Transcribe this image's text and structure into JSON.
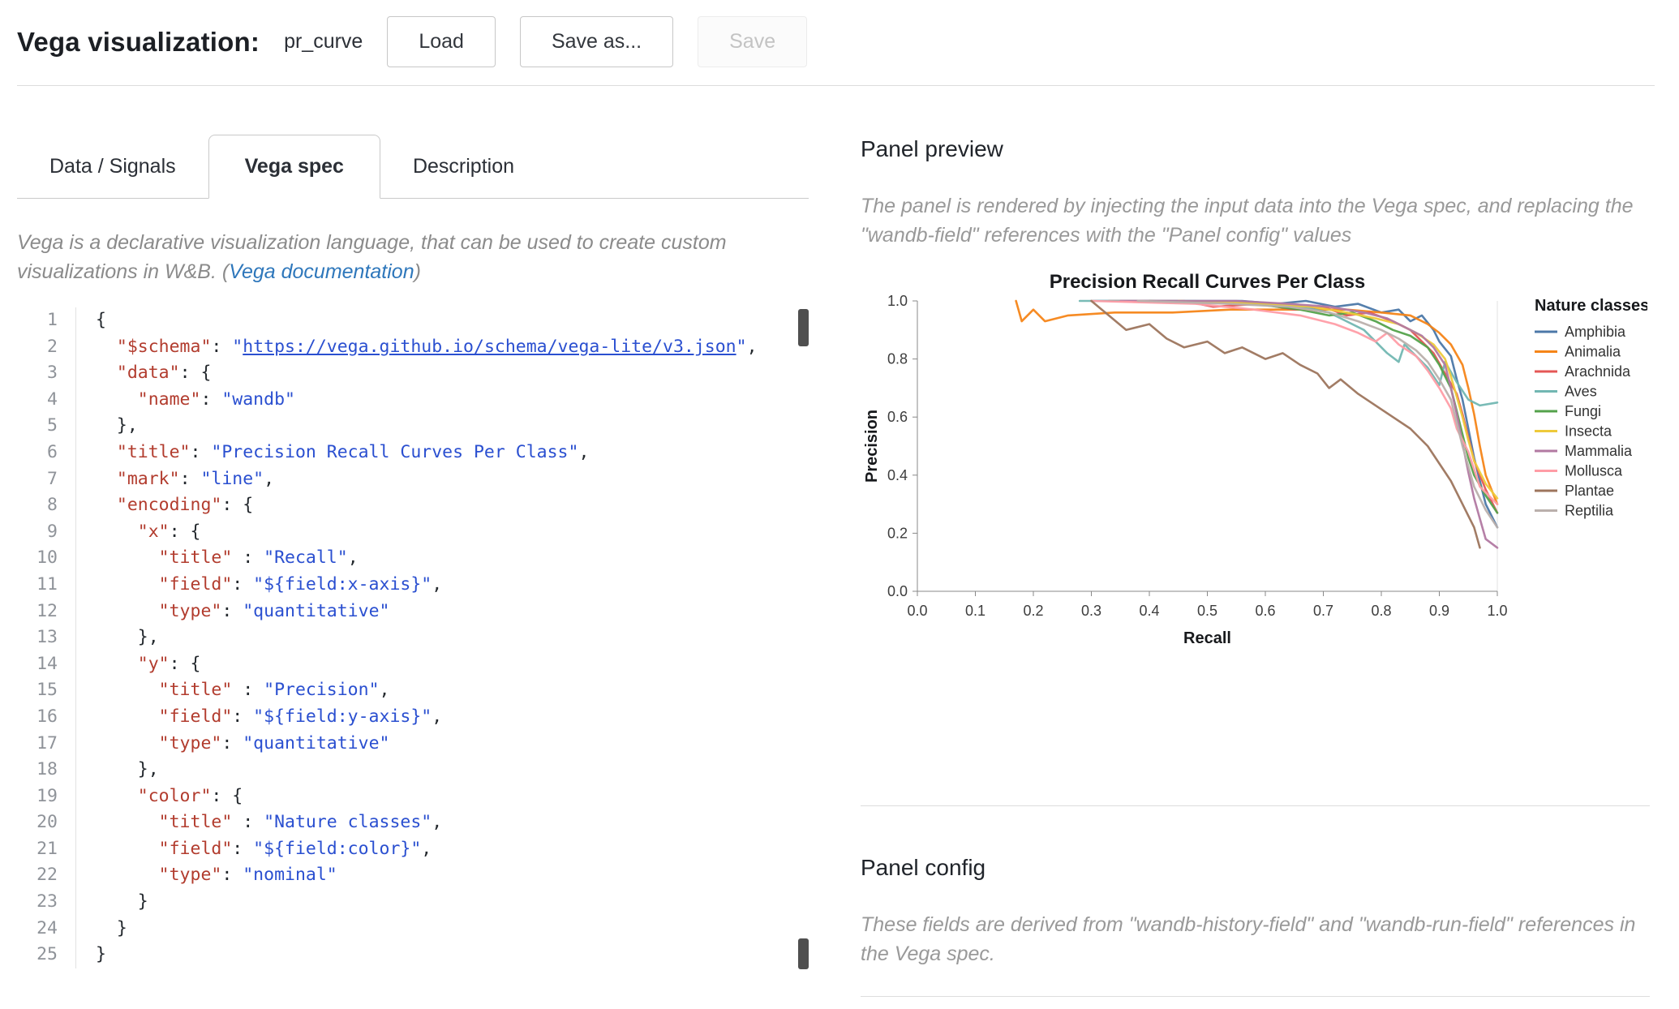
{
  "colors": {
    "link": "#2e77bb",
    "code-key": "#b23c2e",
    "code-str": "#2a4fd0"
  },
  "header": {
    "title": "Vega visualization:",
    "name_value": "pr_curve",
    "load_label": "Load",
    "save_as_label": "Save as...",
    "save_label": "Save"
  },
  "tabs": [
    {
      "label": "Data / Signals"
    },
    {
      "label": "Vega spec"
    },
    {
      "label": "Description"
    }
  ],
  "editor_intro": {
    "text_before_link": "Vega is a declarative visualization language, that can be used to create custom visualizations in W&B. (",
    "link_label": "Vega documentation",
    "text_after_link": ")"
  },
  "code": {
    "lines": [
      [
        {
          "c": "p",
          "t": "{"
        }
      ],
      [
        {
          "c": "p",
          "t": "  "
        },
        {
          "c": "k",
          "t": "\"$schema\""
        },
        {
          "c": "p",
          "t": ": "
        },
        {
          "c": "s",
          "t": "\""
        },
        {
          "c": "l",
          "t": "https://vega.github.io/schema/vega-lite/v3.json"
        },
        {
          "c": "s",
          "t": "\""
        },
        {
          "c": "p",
          "t": ","
        }
      ],
      [
        {
          "c": "p",
          "t": "  "
        },
        {
          "c": "k",
          "t": "\"data\""
        },
        {
          "c": "p",
          "t": ": {"
        }
      ],
      [
        {
          "c": "p",
          "t": "    "
        },
        {
          "c": "k",
          "t": "\"name\""
        },
        {
          "c": "p",
          "t": ": "
        },
        {
          "c": "s",
          "t": "\"wandb\""
        }
      ],
      [
        {
          "c": "p",
          "t": "  },"
        }
      ],
      [
        {
          "c": "p",
          "t": "  "
        },
        {
          "c": "k",
          "t": "\"title\""
        },
        {
          "c": "p",
          "t": ": "
        },
        {
          "c": "s",
          "t": "\"Precision Recall Curves Per Class\""
        },
        {
          "c": "p",
          "t": ","
        }
      ],
      [
        {
          "c": "p",
          "t": "  "
        },
        {
          "c": "k",
          "t": "\"mark\""
        },
        {
          "c": "p",
          "t": ": "
        },
        {
          "c": "s",
          "t": "\"line\""
        },
        {
          "c": "p",
          "t": ","
        }
      ],
      [
        {
          "c": "p",
          "t": "  "
        },
        {
          "c": "k",
          "t": "\"encoding\""
        },
        {
          "c": "p",
          "t": ": {"
        }
      ],
      [
        {
          "c": "p",
          "t": "    "
        },
        {
          "c": "k",
          "t": "\"x\""
        },
        {
          "c": "p",
          "t": ": {"
        }
      ],
      [
        {
          "c": "p",
          "t": "      "
        },
        {
          "c": "k",
          "t": "\"title\""
        },
        {
          "c": "p",
          "t": " : "
        },
        {
          "c": "s",
          "t": "\"Recall\""
        },
        {
          "c": "p",
          "t": ","
        }
      ],
      [
        {
          "c": "p",
          "t": "      "
        },
        {
          "c": "k",
          "t": "\"field\""
        },
        {
          "c": "p",
          "t": ": "
        },
        {
          "c": "s",
          "t": "\"${field:x-axis}\""
        },
        {
          "c": "p",
          "t": ","
        }
      ],
      [
        {
          "c": "p",
          "t": "      "
        },
        {
          "c": "k",
          "t": "\"type\""
        },
        {
          "c": "p",
          "t": ": "
        },
        {
          "c": "s",
          "t": "\"quantitative\""
        }
      ],
      [
        {
          "c": "p",
          "t": "    },"
        }
      ],
      [
        {
          "c": "p",
          "t": "    "
        },
        {
          "c": "k",
          "t": "\"y\""
        },
        {
          "c": "p",
          "t": ": {"
        }
      ],
      [
        {
          "c": "p",
          "t": "      "
        },
        {
          "c": "k",
          "t": "\"title\""
        },
        {
          "c": "p",
          "t": " : "
        },
        {
          "c": "s",
          "t": "\"Precision\""
        },
        {
          "c": "p",
          "t": ","
        }
      ],
      [
        {
          "c": "p",
          "t": "      "
        },
        {
          "c": "k",
          "t": "\"field\""
        },
        {
          "c": "p",
          "t": ": "
        },
        {
          "c": "s",
          "t": "\"${field:y-axis}\""
        },
        {
          "c": "p",
          "t": ","
        }
      ],
      [
        {
          "c": "p",
          "t": "      "
        },
        {
          "c": "k",
          "t": "\"type\""
        },
        {
          "c": "p",
          "t": ": "
        },
        {
          "c": "s",
          "t": "\"quantitative\""
        }
      ],
      [
        {
          "c": "p",
          "t": "    },"
        }
      ],
      [
        {
          "c": "p",
          "t": "    "
        },
        {
          "c": "k",
          "t": "\"color\""
        },
        {
          "c": "p",
          "t": ": {"
        }
      ],
      [
        {
          "c": "p",
          "t": "      "
        },
        {
          "c": "k",
          "t": "\"title\""
        },
        {
          "c": "p",
          "t": " : "
        },
        {
          "c": "s",
          "t": "\"Nature classes\""
        },
        {
          "c": "p",
          "t": ","
        }
      ],
      [
        {
          "c": "p",
          "t": "      "
        },
        {
          "c": "k",
          "t": "\"field\""
        },
        {
          "c": "p",
          "t": ": "
        },
        {
          "c": "s",
          "t": "\"${field:color}\""
        },
        {
          "c": "p",
          "t": ","
        }
      ],
      [
        {
          "c": "p",
          "t": "      "
        },
        {
          "c": "k",
          "t": "\"type\""
        },
        {
          "c": "p",
          "t": ": "
        },
        {
          "c": "s",
          "t": "\"nominal\""
        }
      ],
      [
        {
          "c": "p",
          "t": "    }"
        }
      ],
      [
        {
          "c": "p",
          "t": "  }"
        }
      ],
      [
        {
          "c": "p",
          "t": "}"
        }
      ]
    ]
  },
  "panel_preview": {
    "heading": "Panel preview",
    "description": "The panel is rendered by injecting the input data into the Vega spec, and replacing the \"wandb-field\" references with the \"Panel config\" values"
  },
  "panel_config": {
    "heading": "Panel config",
    "description": "These fields are derived from \"wandb-history-field\" and \"wandb-run-field\" references in the Vega spec."
  },
  "chart_data": {
    "type": "line",
    "title": "Precision Recall Curves Per Class",
    "xlabel": "Recall",
    "ylabel": "Precision",
    "xlim": [
      0,
      1
    ],
    "ylim": [
      0,
      1
    ],
    "x_ticks": [
      0.0,
      0.1,
      0.2,
      0.3,
      0.4,
      0.5,
      0.6,
      0.7,
      0.8,
      0.9,
      1.0
    ],
    "y_ticks": [
      0.0,
      0.2,
      0.4,
      0.6,
      0.8,
      1.0
    ],
    "grid": false,
    "legend_title": "Nature classes",
    "legend_position": "right",
    "series": [
      {
        "name": "Amphibia",
        "color": "#4c78a8",
        "points": [
          [
            0.3,
            1.0
          ],
          [
            0.56,
            1.0
          ],
          [
            0.62,
            0.99
          ],
          [
            0.67,
            1.0
          ],
          [
            0.72,
            0.98
          ],
          [
            0.76,
            0.99
          ],
          [
            0.8,
            0.96
          ],
          [
            0.83,
            0.97
          ],
          [
            0.85,
            0.93
          ],
          [
            0.87,
            0.95
          ],
          [
            0.89,
            0.9
          ],
          [
            0.9,
            0.86
          ],
          [
            0.92,
            0.81
          ],
          [
            0.93,
            0.73
          ],
          [
            0.94,
            0.66
          ],
          [
            0.95,
            0.56
          ],
          [
            0.96,
            0.46
          ],
          [
            0.97,
            0.38
          ],
          [
            0.98,
            0.3
          ],
          [
            1.0,
            0.22
          ]
        ]
      },
      {
        "name": "Animalia",
        "color": "#f58518",
        "points": [
          [
            0.17,
            1.0
          ],
          [
            0.18,
            0.93
          ],
          [
            0.2,
            0.97
          ],
          [
            0.22,
            0.93
          ],
          [
            0.26,
            0.95
          ],
          [
            0.34,
            0.96
          ],
          [
            0.44,
            0.96
          ],
          [
            0.54,
            0.97
          ],
          [
            0.64,
            0.97
          ],
          [
            0.74,
            0.97
          ],
          [
            0.8,
            0.96
          ],
          [
            0.85,
            0.95
          ],
          [
            0.88,
            0.92
          ],
          [
            0.9,
            0.89
          ],
          [
            0.92,
            0.85
          ],
          [
            0.94,
            0.78
          ],
          [
            0.95,
            0.7
          ],
          [
            0.96,
            0.61
          ],
          [
            0.97,
            0.5
          ],
          [
            0.98,
            0.4
          ],
          [
            1.0,
            0.3
          ]
        ]
      },
      {
        "name": "Arachnida",
        "color": "#e45756",
        "points": [
          [
            0.33,
            1.0
          ],
          [
            0.46,
            1.0
          ],
          [
            0.51,
            0.98
          ],
          [
            0.59,
            0.99
          ],
          [
            0.65,
            0.97
          ],
          [
            0.7,
            0.98
          ],
          [
            0.74,
            0.95
          ],
          [
            0.78,
            0.96
          ],
          [
            0.82,
            0.93
          ],
          [
            0.85,
            0.9
          ],
          [
            0.87,
            0.86
          ],
          [
            0.89,
            0.82
          ],
          [
            0.91,
            0.75
          ],
          [
            0.93,
            0.68
          ],
          [
            0.94,
            0.61
          ],
          [
            0.95,
            0.53
          ],
          [
            0.96,
            0.45
          ],
          [
            0.98,
            0.35
          ],
          [
            1.0,
            0.27
          ]
        ]
      },
      {
        "name": "Aves",
        "color": "#72b7b2",
        "points": [
          [
            0.28,
            1.0
          ],
          [
            0.48,
            1.0
          ],
          [
            0.58,
            0.99
          ],
          [
            0.66,
            0.98
          ],
          [
            0.71,
            0.96
          ],
          [
            0.74,
            0.93
          ],
          [
            0.77,
            0.9
          ],
          [
            0.79,
            0.86
          ],
          [
            0.81,
            0.82
          ],
          [
            0.83,
            0.79
          ],
          [
            0.84,
            0.85
          ],
          [
            0.86,
            0.81
          ],
          [
            0.88,
            0.77
          ],
          [
            0.9,
            0.71
          ],
          [
            0.91,
            0.79
          ],
          [
            0.93,
            0.72
          ],
          [
            0.95,
            0.66
          ],
          [
            0.97,
            0.64
          ],
          [
            1.0,
            0.65
          ]
        ]
      },
      {
        "name": "Fungi",
        "color": "#54a24b",
        "points": [
          [
            0.4,
            1.0
          ],
          [
            0.58,
            0.99
          ],
          [
            0.66,
            0.97
          ],
          [
            0.71,
            0.95
          ],
          [
            0.75,
            0.96
          ],
          [
            0.79,
            0.93
          ],
          [
            0.82,
            0.9
          ],
          [
            0.85,
            0.88
          ],
          [
            0.88,
            0.84
          ],
          [
            0.9,
            0.78
          ],
          [
            0.92,
            0.7
          ],
          [
            0.93,
            0.62
          ],
          [
            0.94,
            0.54
          ],
          [
            0.95,
            0.46
          ],
          [
            0.96,
            0.4
          ],
          [
            0.98,
            0.33
          ],
          [
            1.0,
            0.27
          ]
        ]
      },
      {
        "name": "Insecta",
        "color": "#eeca3b",
        "points": [
          [
            0.45,
            1.0
          ],
          [
            0.6,
            0.99
          ],
          [
            0.68,
            0.98
          ],
          [
            0.74,
            0.96
          ],
          [
            0.79,
            0.94
          ],
          [
            0.83,
            0.92
          ],
          [
            0.86,
            0.89
          ],
          [
            0.89,
            0.85
          ],
          [
            0.91,
            0.8
          ],
          [
            0.92,
            0.74
          ],
          [
            0.93,
            0.67
          ],
          [
            0.94,
            0.6
          ],
          [
            0.95,
            0.52
          ],
          [
            0.96,
            0.45
          ],
          [
            0.98,
            0.37
          ],
          [
            1.0,
            0.32
          ]
        ]
      },
      {
        "name": "Mammalia",
        "color": "#b279a2",
        "points": [
          [
            0.35,
            1.0
          ],
          [
            0.55,
            1.0
          ],
          [
            0.64,
            0.99
          ],
          [
            0.71,
            0.98
          ],
          [
            0.77,
            0.96
          ],
          [
            0.81,
            0.94
          ],
          [
            0.84,
            0.91
          ],
          [
            0.87,
            0.88
          ],
          [
            0.89,
            0.84
          ],
          [
            0.91,
            0.78
          ],
          [
            0.92,
            0.7
          ],
          [
            0.93,
            0.61
          ],
          [
            0.94,
            0.51
          ],
          [
            0.95,
            0.41
          ],
          [
            0.96,
            0.32
          ],
          [
            0.97,
            0.25
          ],
          [
            0.98,
            0.18
          ],
          [
            1.0,
            0.15
          ]
        ]
      },
      {
        "name": "Mollusca",
        "color": "#ff9da6",
        "points": [
          [
            0.3,
            1.0
          ],
          [
            0.48,
            0.99
          ],
          [
            0.58,
            0.97
          ],
          [
            0.66,
            0.95
          ],
          [
            0.72,
            0.92
          ],
          [
            0.76,
            0.89
          ],
          [
            0.79,
            0.86
          ],
          [
            0.81,
            0.89
          ],
          [
            0.83,
            0.85
          ],
          [
            0.86,
            0.81
          ],
          [
            0.88,
            0.76
          ],
          [
            0.9,
            0.7
          ],
          [
            0.92,
            0.63
          ],
          [
            0.93,
            0.56
          ],
          [
            0.95,
            0.48
          ],
          [
            0.96,
            0.42
          ],
          [
            0.97,
            0.36
          ],
          [
            1.0,
            0.3
          ]
        ]
      },
      {
        "name": "Plantae",
        "color": "#9d755d",
        "points": [
          [
            0.3,
            1.0
          ],
          [
            0.33,
            0.95
          ],
          [
            0.36,
            0.9
          ],
          [
            0.4,
            0.92
          ],
          [
            0.43,
            0.87
          ],
          [
            0.46,
            0.84
          ],
          [
            0.5,
            0.86
          ],
          [
            0.53,
            0.82
          ],
          [
            0.56,
            0.84
          ],
          [
            0.6,
            0.8
          ],
          [
            0.63,
            0.82
          ],
          [
            0.66,
            0.78
          ],
          [
            0.69,
            0.75
          ],
          [
            0.71,
            0.7
          ],
          [
            0.73,
            0.73
          ],
          [
            0.76,
            0.68
          ],
          [
            0.79,
            0.64
          ],
          [
            0.82,
            0.6
          ],
          [
            0.85,
            0.56
          ],
          [
            0.88,
            0.5
          ],
          [
            0.9,
            0.44
          ],
          [
            0.92,
            0.38
          ],
          [
            0.94,
            0.3
          ],
          [
            0.96,
            0.22
          ],
          [
            0.97,
            0.15
          ]
        ]
      },
      {
        "name": "Reptilia",
        "color": "#bab0ac",
        "points": [
          [
            0.38,
            1.0
          ],
          [
            0.54,
            0.99
          ],
          [
            0.64,
            0.98
          ],
          [
            0.71,
            0.96
          ],
          [
            0.76,
            0.93
          ],
          [
            0.8,
            0.9
          ],
          [
            0.83,
            0.87
          ],
          [
            0.86,
            0.83
          ],
          [
            0.88,
            0.79
          ],
          [
            0.9,
            0.73
          ],
          [
            0.92,
            0.66
          ],
          [
            0.93,
            0.58
          ],
          [
            0.94,
            0.5
          ],
          [
            0.95,
            0.43
          ],
          [
            0.96,
            0.36
          ],
          [
            0.98,
            0.28
          ],
          [
            1.0,
            0.22
          ]
        ]
      }
    ]
  }
}
